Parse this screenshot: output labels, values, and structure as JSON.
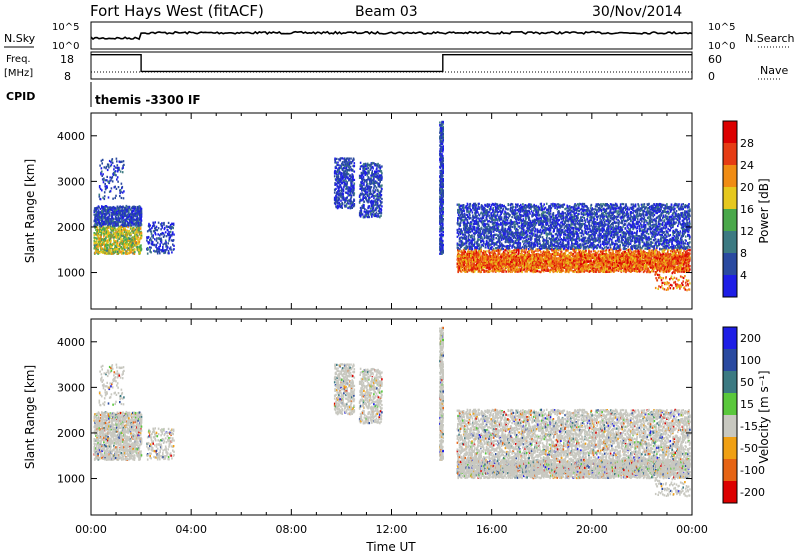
{
  "header": {
    "title": "Fort Hays West (fitACF)",
    "beam": "Beam 03",
    "date": "30/Nov/2014"
  },
  "top_panels": {
    "nsky_label": "N.Sky",
    "nsearch_label": "N.Search",
    "nave_label": "Nave",
    "count_ticks": [
      "10^5",
      "10^0"
    ],
    "freq_label_line1": "Freq.",
    "freq_label_line2": "[MHz]",
    "freq_ticks": [
      "18",
      "8"
    ],
    "nave_ticks": [
      "60",
      "0"
    ],
    "cpid_label": "CPID",
    "cpid_text": "themis -3300 IF"
  },
  "chart_data": [
    {
      "type": "line",
      "name": "N.Sky",
      "x_hours": [
        0,
        2,
        2.01,
        24
      ],
      "level": [
        0.4,
        0.4,
        0.6,
        0.6
      ]
    },
    {
      "type": "line",
      "name": "Freq",
      "unit": "MHz",
      "ylim": [
        8,
        18
      ],
      "x_hours": [
        0,
        2,
        2,
        14.05,
        14.05,
        24
      ],
      "values": [
        17,
        17,
        10.8,
        10.8,
        17,
        17
      ]
    },
    {
      "type": "heatmap",
      "name": "Power",
      "xlabel": "",
      "ylabel": "Slant Range [km]",
      "xlim_hours": [
        0,
        24
      ],
      "ylim": [
        200,
        4500
      ],
      "yticks": [
        "1000",
        "2000",
        "3000",
        "4000"
      ],
      "colorbar": {
        "label": "Power [dB]",
        "ticks": [
          "4",
          "8",
          "12",
          "16",
          "20",
          "24",
          "28"
        ]
      },
      "colors": [
        "#1e1ee6",
        "#2a4aa0",
        "#3c7a82",
        "#4aa84a",
        "#e6c81e",
        "#f08c14",
        "#e63c14",
        "#dc0000"
      ]
    },
    {
      "type": "heatmap",
      "name": "Velocity",
      "xlabel": "Time UT",
      "ylabel": "Slant Range [km]",
      "xlim_hours": [
        0,
        24
      ],
      "ylim": [
        200,
        4500
      ],
      "yticks": [
        "1000",
        "2000",
        "3000",
        "4000"
      ],
      "xticks": [
        "00:00",
        "04:00",
        "08:00",
        "12:00",
        "16:00",
        "20:00",
        "00:00"
      ],
      "colorbar": {
        "label": "Velocity [m s⁻¹]",
        "ticks": [
          "200",
          "100",
          "50",
          "15",
          "-15",
          "-50",
          "-100",
          "-200"
        ]
      },
      "colors": [
        "#1e1ee6",
        "#2a4aa0",
        "#3c7a82",
        "#5ac83c",
        "#c8c8c0",
        "#f0a014",
        "#e66414",
        "#dc0000"
      ]
    }
  ]
}
